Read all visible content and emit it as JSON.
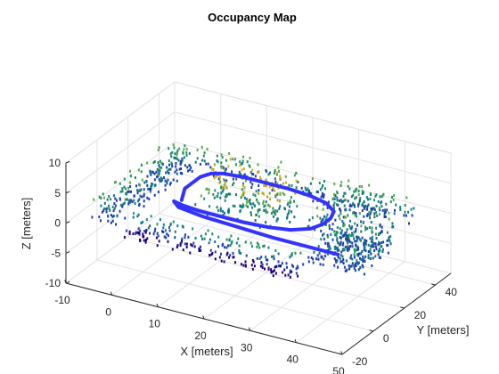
{
  "chart_data": {
    "type": "scatter",
    "projection": "3d",
    "title": "Occupancy Map",
    "xlabel": "X [meters]",
    "ylabel": "Y [meters]",
    "zlabel": "Z [meters]",
    "xlim": [
      -10,
      50
    ],
    "ylim": [
      -20,
      50
    ],
    "zlim": [
      -10,
      10
    ],
    "xticks": [
      -10,
      0,
      10,
      20,
      30,
      40,
      50
    ],
    "yticks": [
      -20,
      0,
      20,
      40
    ],
    "zticks": [
      -10,
      -5,
      0,
      5,
      10
    ],
    "grid": true,
    "series": [
      {
        "role": "occupied-cells",
        "colormap": [
          "#23007a",
          "#1f3fa8",
          "#12748a",
          "#1d8f63",
          "#5aa84a",
          "#b4a52a",
          "#e0a81e"
        ],
        "clusters": [
          {
            "x": [
              -6,
              38
            ],
            "y": [
              36,
              44
            ],
            "z": [
              -1,
              3
            ]
          },
          {
            "x": [
              0,
              38
            ],
            "y": [
              -12,
              -6
            ],
            "z": [
              -2,
              2
            ]
          },
          {
            "x": [
              -8,
              -2
            ],
            "y": [
              -10,
              40
            ],
            "z": [
              -1,
              3
            ]
          },
          {
            "x": [
              8,
              26
            ],
            "y": [
              8,
              26
            ],
            "z": [
              0,
              6
            ]
          },
          {
            "x": [
              30,
              45
            ],
            "y": [
              10,
              45
            ],
            "z": [
              -1,
              3
            ]
          },
          {
            "x": [
              36,
              48
            ],
            "y": [
              -2,
              22
            ],
            "z": [
              -1,
              2
            ]
          }
        ]
      },
      {
        "role": "robot-trajectory",
        "color": "#3333ff",
        "x": [
          5,
          4,
          3,
          3,
          3,
          4,
          6,
          10,
          15,
          20,
          25,
          29,
          32,
          33,
          33,
          32,
          29,
          25,
          20,
          15,
          10,
          6,
          4,
          6,
          12,
          20,
          28,
          36,
          42
        ],
        "y": [
          10,
          14,
          18,
          23,
          28,
          32,
          34,
          35,
          35,
          35,
          34,
          32,
          28,
          23,
          18,
          13,
          9,
          7,
          6,
          6,
          6,
          7,
          8,
          5,
          3,
          2,
          1,
          1,
          1
        ],
        "z": [
          1,
          1,
          1,
          1,
          1,
          1,
          1,
          1,
          1,
          1,
          1,
          1,
          1,
          1,
          1,
          1,
          1,
          1,
          1,
          1,
          1,
          1,
          1,
          1,
          1,
          1,
          1,
          1,
          1
        ]
      }
    ]
  }
}
